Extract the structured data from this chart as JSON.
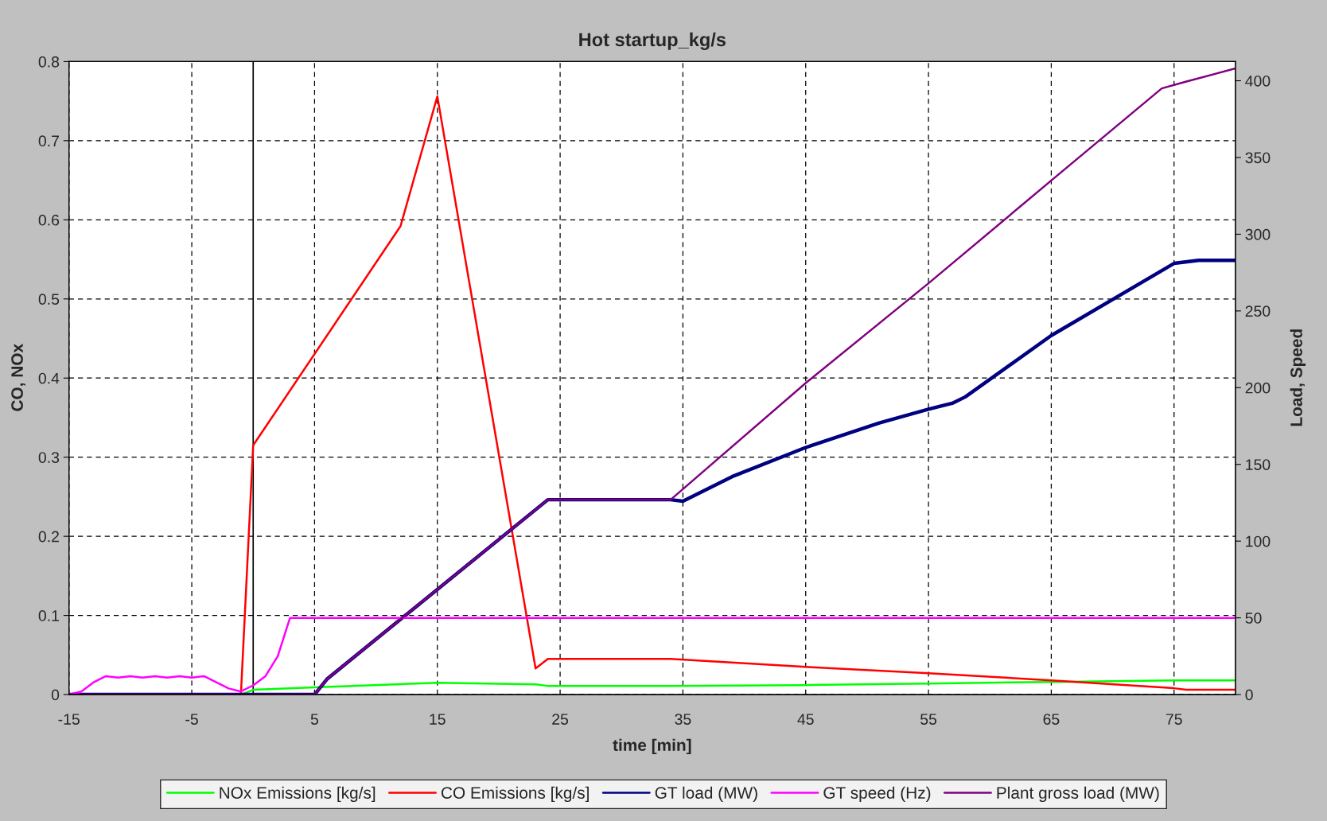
{
  "chart_data": {
    "type": "line",
    "title": "Hot startup_kg/s",
    "xlabel": "time [min]",
    "ylabel": "CO, NOx",
    "y2label": "Load, Speed",
    "xlim": [
      -15,
      80
    ],
    "xticks": [
      -15,
      -5,
      5,
      15,
      25,
      35,
      45,
      55,
      65,
      75
    ],
    "ylim": [
      0,
      0.8
    ],
    "yticks": [
      0,
      0.1,
      0.2,
      0.3,
      0.4,
      0.5,
      0.6,
      0.7,
      0.8
    ],
    "y2lim": [
      0,
      412.5
    ],
    "y2ticks": [
      0,
      50,
      100,
      150,
      200,
      250,
      300,
      350,
      400
    ],
    "grid": true,
    "legend": "bottom",
    "marker": "none",
    "line_style": "solid",
    "ref_lines": [
      {
        "axis": "x",
        "value": 0,
        "color": "#000000"
      }
    ],
    "series": [
      {
        "name": "NOx Emissions [kg/s]",
        "color": "#00ff00",
        "x": [
          -1,
          0,
          5,
          15,
          23,
          24,
          34,
          45,
          55,
          65,
          75,
          80
        ],
        "values": [
          0,
          0.006,
          0.009,
          0.015,
          0.013,
          0.011,
          0.011,
          0.012,
          0.014,
          0.016,
          0.018,
          0.018
        ]
      },
      {
        "name": "CO Emissions [kg/s]",
        "color": "#ff0000",
        "x": [
          -1,
          0,
          12,
          15,
          23,
          24,
          34,
          45,
          55,
          65,
          75,
          76,
          80
        ],
        "values": [
          0,
          0.315,
          0.592,
          0.756,
          0.033,
          0.045,
          0.045,
          0.035,
          0.027,
          0.018,
          0.008,
          0.006,
          0.006
        ]
      },
      {
        "name": "GT load (MW)",
        "color": "#000080",
        "axis": "y2",
        "x": [
          -15,
          5,
          6,
          24,
          34,
          35,
          39,
          45,
          51,
          55,
          57,
          58,
          65,
          75,
          77,
          80
        ],
        "values": [
          0,
          0,
          10,
          127,
          127,
          126,
          142,
          161,
          177,
          186,
          190,
          194,
          234,
          281,
          283,
          283
        ]
      },
      {
        "name": "GT speed (Hz)",
        "color": "#ff00ff",
        "axis": "y2",
        "x": [
          -15,
          -14,
          -13,
          -12,
          -11,
          -10,
          -9,
          -8,
          -7,
          -6,
          -5,
          -4,
          -3,
          -2,
          -1,
          0,
          1,
          2,
          3,
          80
        ],
        "values": [
          0,
          2,
          8,
          12,
          11,
          12,
          11,
          12,
          11,
          12,
          11,
          12,
          8,
          4,
          2,
          6,
          12,
          25,
          50,
          50
        ]
      },
      {
        "name": "Plant gross load (MW)",
        "color": "#800080",
        "axis": "y2",
        "x": [
          -15,
          5,
          6,
          24,
          34,
          45,
          55,
          65,
          74,
          76,
          80
        ],
        "values": [
          0,
          0,
          10,
          127,
          127,
          203,
          268,
          335,
          395,
          399.5,
          408
        ]
      }
    ]
  }
}
